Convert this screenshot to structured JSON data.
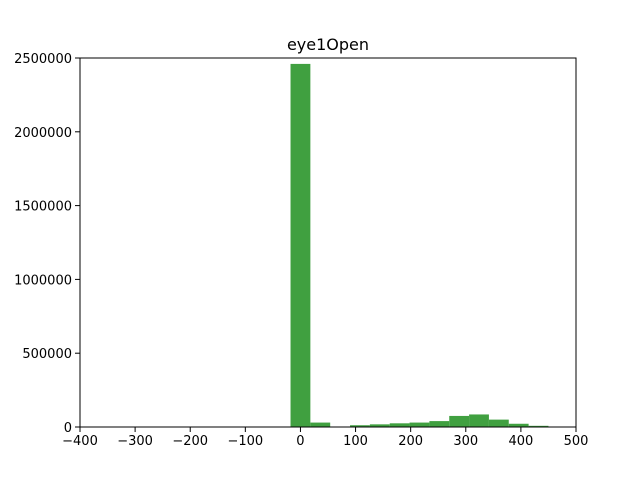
{
  "chart_data": {
    "type": "bar",
    "title": "eye1Open",
    "xlabel": "",
    "ylabel": "",
    "xlim": [
      -400,
      500
    ],
    "ylim": [
      0,
      2500000
    ],
    "x_ticks": [
      "−400",
      "−300",
      "−200",
      "−100",
      "0",
      "100",
      "200",
      "300",
      "400",
      "500"
    ],
    "y_ticks": [
      "0",
      "500000",
      "1000000",
      "1500000",
      "2000000",
      "2500000"
    ],
    "bar_color": "#40a040",
    "grid": false,
    "bins": [
      {
        "x0": -18,
        "x1": 18,
        "value": 2460000
      },
      {
        "x0": 18,
        "x1": 54,
        "value": 30000
      },
      {
        "x0": 54,
        "x1": 90,
        "value": 2000
      },
      {
        "x0": 90,
        "x1": 126,
        "value": 12000
      },
      {
        "x0": 126,
        "x1": 162,
        "value": 18000
      },
      {
        "x0": 162,
        "x1": 198,
        "value": 25000
      },
      {
        "x0": 198,
        "x1": 234,
        "value": 30000
      },
      {
        "x0": 234,
        "x1": 270,
        "value": 40000
      },
      {
        "x0": 270,
        "x1": 306,
        "value": 75000
      },
      {
        "x0": 306,
        "x1": 342,
        "value": 85000
      },
      {
        "x0": 342,
        "x1": 378,
        "value": 50000
      },
      {
        "x0": 378,
        "x1": 414,
        "value": 22000
      },
      {
        "x0": 414,
        "x1": 450,
        "value": 8000
      }
    ]
  }
}
